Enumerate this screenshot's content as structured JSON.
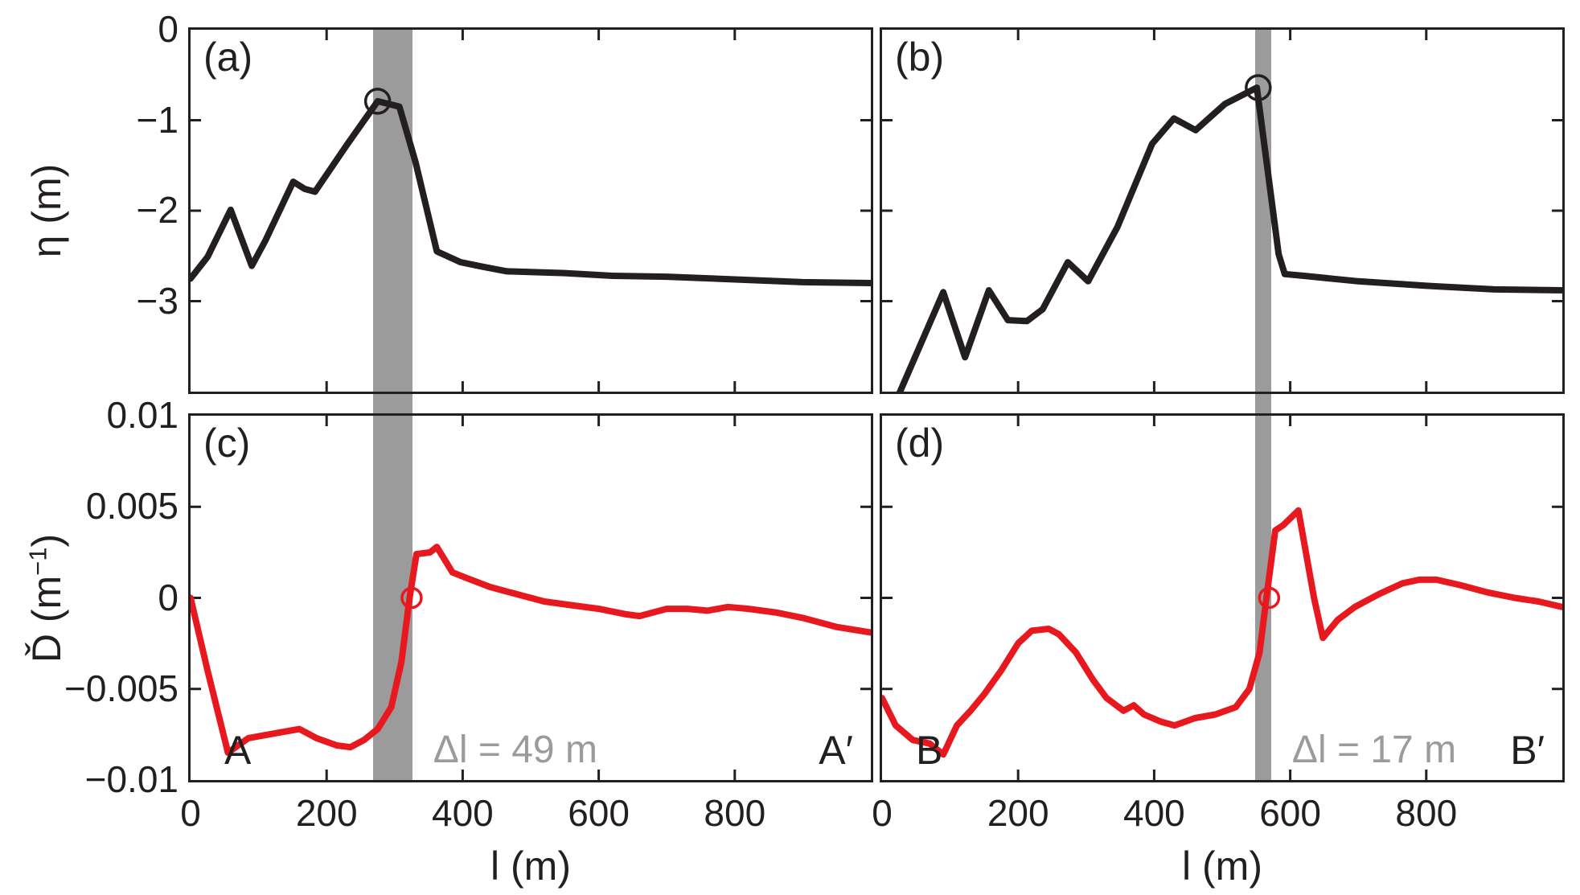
{
  "colors": {
    "background": "#ffffff",
    "curve_black": "#231f20",
    "curve_red": "#e8191e",
    "band_gray": "#9b9b9b",
    "annotation_gray": "#9b9b9b",
    "frame": "#231f20"
  },
  "axes": {
    "x": {
      "title": "l (m)",
      "tick_labels": [
        "0",
        "200",
        "400",
        "600",
        "800"
      ],
      "tick_values": [
        0,
        200,
        400,
        600,
        800
      ],
      "range": [
        0,
        1000
      ]
    },
    "eta": {
      "title": "η (m)",
      "tick_labels": [
        "0",
        "−1",
        "−2",
        "−3"
      ],
      "tick_values": [
        0,
        -1,
        -2,
        -3
      ],
      "range": [
        -4,
        0
      ]
    },
    "dhat": {
      "title_prefix": "Ď (m",
      "title_sup": "−1",
      "title_suffix": ")",
      "tick_labels": [
        "0.01",
        "0.005",
        "0",
        "−0.005",
        "−0.01"
      ],
      "tick_values": [
        0.01,
        0.005,
        0,
        -0.005,
        -0.01
      ],
      "range": [
        -0.01,
        0.01
      ]
    }
  },
  "chart_data": [
    {
      "id": "a",
      "type": "line",
      "panel_label": "(a)",
      "ylabel": "η (m)",
      "xlabel": "l (m)",
      "xlim": [
        0,
        1000
      ],
      "ylim": [
        -4,
        0
      ],
      "grid": false,
      "series": [
        {
          "name": "water-surface-elevation-A",
          "color": "black",
          "x": [
            0,
            25,
            59,
            90,
            110,
            151,
            168,
            183,
            230,
            275,
            307,
            331,
            362,
            397,
            430,
            465,
            550,
            620,
            700,
            800,
            900,
            1000
          ],
          "y": [
            -2.75,
            -2.51,
            -1.99,
            -2.61,
            -2.33,
            -1.68,
            -1.76,
            -1.79,
            -1.27,
            -0.79,
            -0.85,
            -1.47,
            -2.45,
            -2.57,
            -2.62,
            -2.67,
            -2.69,
            -2.72,
            -2.73,
            -2.76,
            -2.79,
            -2.8
          ]
        }
      ],
      "band_x": [
        268,
        326
      ],
      "marker": {
        "x": 275,
        "y": -0.79,
        "color": "black"
      }
    },
    {
      "id": "b",
      "type": "line",
      "panel_label": "(b)",
      "ylabel": "η (m)",
      "xlabel": "l (m)",
      "xlim": [
        0,
        1000
      ],
      "ylim": [
        -4,
        0
      ],
      "grid": false,
      "series": [
        {
          "name": "water-surface-elevation-B",
          "color": "black",
          "x": [
            12,
            90,
            122,
            157,
            185,
            213,
            236,
            273,
            303,
            346,
            397,
            429,
            461,
            504,
            551,
            583,
            592,
            620,
            700,
            800,
            900,
            1000
          ],
          "y": [
            -4.25,
            -2.9,
            -3.62,
            -2.88,
            -3.21,
            -3.22,
            -3.09,
            -2.57,
            -2.78,
            -2.18,
            -1.26,
            -0.98,
            -1.11,
            -0.82,
            -0.64,
            -2.48,
            -2.7,
            -2.72,
            -2.78,
            -2.83,
            -2.87,
            -2.88
          ]
        }
      ],
      "band_x": [
        549,
        572
      ],
      "marker": {
        "x": 553,
        "y": -0.64,
        "color": "black"
      }
    },
    {
      "id": "c",
      "type": "line",
      "panel_label": "(c)",
      "ylabel": "Ď (m−1)",
      "xlabel": "l (m)",
      "xlim": [
        0,
        1000
      ],
      "ylim": [
        -0.01,
        0.01
      ],
      "grid": false,
      "series": [
        {
          "name": "divergence-A",
          "color": "red",
          "x": [
            0,
            25,
            55,
            85,
            130,
            160,
            185,
            215,
            235,
            255,
            275,
            295,
            310,
            322,
            332,
            352,
            362,
            385,
            405,
            440,
            480,
            520,
            560,
            600,
            640,
            660,
            700,
            730,
            760,
            790,
            820,
            860,
            900,
            950,
            1000
          ],
          "y": [
            0.0,
            -0.004,
            -0.0085,
            -0.0077,
            -0.0074,
            -0.0072,
            -0.0077,
            -0.0081,
            -0.0082,
            -0.0078,
            -0.0072,
            -0.006,
            -0.0035,
            0.0,
            0.0024,
            0.0025,
            0.0028,
            0.0014,
            0.0011,
            0.0006,
            0.0002,
            -0.0002,
            -0.0004,
            -0.0006,
            -0.0009,
            -0.001,
            -0.0006,
            -0.0006,
            -0.0007,
            -0.0005,
            -0.0006,
            -0.0008,
            -0.0011,
            -0.0016,
            -0.0019
          ]
        }
      ],
      "band_x": [
        268,
        326
      ],
      "marker": {
        "x": 325,
        "y": 0,
        "color": "red"
      },
      "annotations": {
        "left": "A",
        "right": "A′",
        "band_label": "Δl = 49 m"
      }
    },
    {
      "id": "d",
      "type": "line",
      "panel_label": "(d)",
      "ylabel": "Ď (m−1)",
      "xlabel": "l (m)",
      "xlim": [
        0,
        1000
      ],
      "ylim": [
        -0.01,
        0.01
      ],
      "grid": false,
      "series": [
        {
          "name": "divergence-B",
          "color": "red",
          "x": [
            0,
            20,
            45,
            70,
            90,
            110,
            130,
            150,
            175,
            200,
            220,
            245,
            260,
            285,
            310,
            330,
            355,
            370,
            385,
            410,
            430,
            460,
            490,
            520,
            540,
            555,
            565,
            578,
            590,
            612,
            635,
            648,
            670,
            695,
            730,
            765,
            790,
            815,
            850,
            890,
            930,
            965,
            1000
          ],
          "y": [
            -0.0055,
            -0.007,
            -0.0078,
            -0.008,
            -0.0086,
            -0.007,
            -0.0062,
            -0.0053,
            -0.004,
            -0.0025,
            -0.0018,
            -0.0017,
            -0.002,
            -0.003,
            -0.0045,
            -0.0055,
            -0.0062,
            -0.0059,
            -0.0064,
            -0.0068,
            -0.007,
            -0.0066,
            -0.0064,
            -0.006,
            -0.005,
            -0.003,
            0.0,
            0.0037,
            0.004,
            0.0048,
            0.0,
            -0.0022,
            -0.0012,
            -0.0005,
            0.0002,
            0.0008,
            0.001,
            0.001,
            0.0007,
            0.0003,
            0.0,
            -0.0002,
            -0.0005
          ]
        }
      ],
      "band_x": [
        549,
        572
      ],
      "marker": {
        "x": 569,
        "y": 0,
        "color": "red"
      },
      "annotations": {
        "left": "B",
        "right": "B′",
        "band_label": "Δl = 17 m"
      }
    }
  ]
}
